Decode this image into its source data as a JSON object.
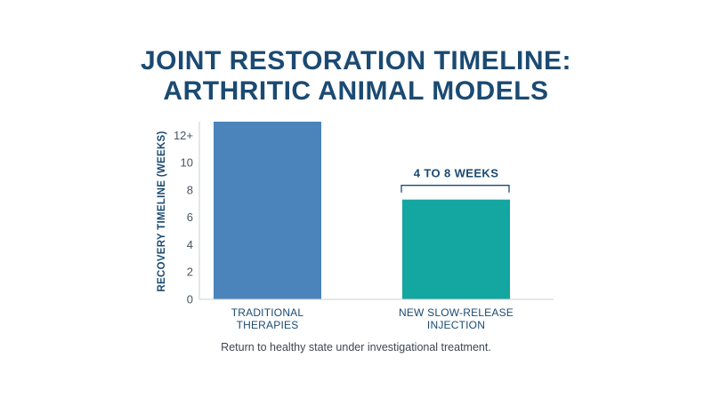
{
  "title_lines": [
    "JOINT RESTORATION TIMELINE:",
    "ARTHRITIC ANIMAL MODELS"
  ],
  "caption": "Return to healthy state under investigational treatment.",
  "colors": {
    "title": "#1b4a72",
    "bar_traditional": "#4a84bb",
    "bar_injection": "#14a6a0",
    "axis": "#c9cfd6"
  },
  "chart_data": {
    "type": "bar",
    "title": "JOINT RESTORATION TIMELINE: ARTHRITIC ANIMAL MODELS",
    "ylabel": "RECOVERY TIMELINE (WEEKS)",
    "xlabel": "",
    "ylim": [
      0,
      13
    ],
    "yticks": [
      0,
      2,
      4,
      6,
      8,
      10,
      12
    ],
    "ytick_labels": [
      "0",
      "2",
      "4",
      "6",
      "8",
      "10",
      "12+"
    ],
    "categories": [
      [
        "TRADITIONAL",
        "THERAPIES"
      ],
      [
        "NEW SLOW-RELEASE",
        "INJECTION"
      ]
    ],
    "values": [
      13,
      7.3
    ],
    "bar_colors": [
      "#4a84bb",
      "#14a6a0"
    ],
    "annotations": [
      {
        "category_index": 1,
        "text": "4 TO 8 WEEKS",
        "type": "bracket"
      }
    ],
    "grid": false,
    "legend": "none"
  }
}
